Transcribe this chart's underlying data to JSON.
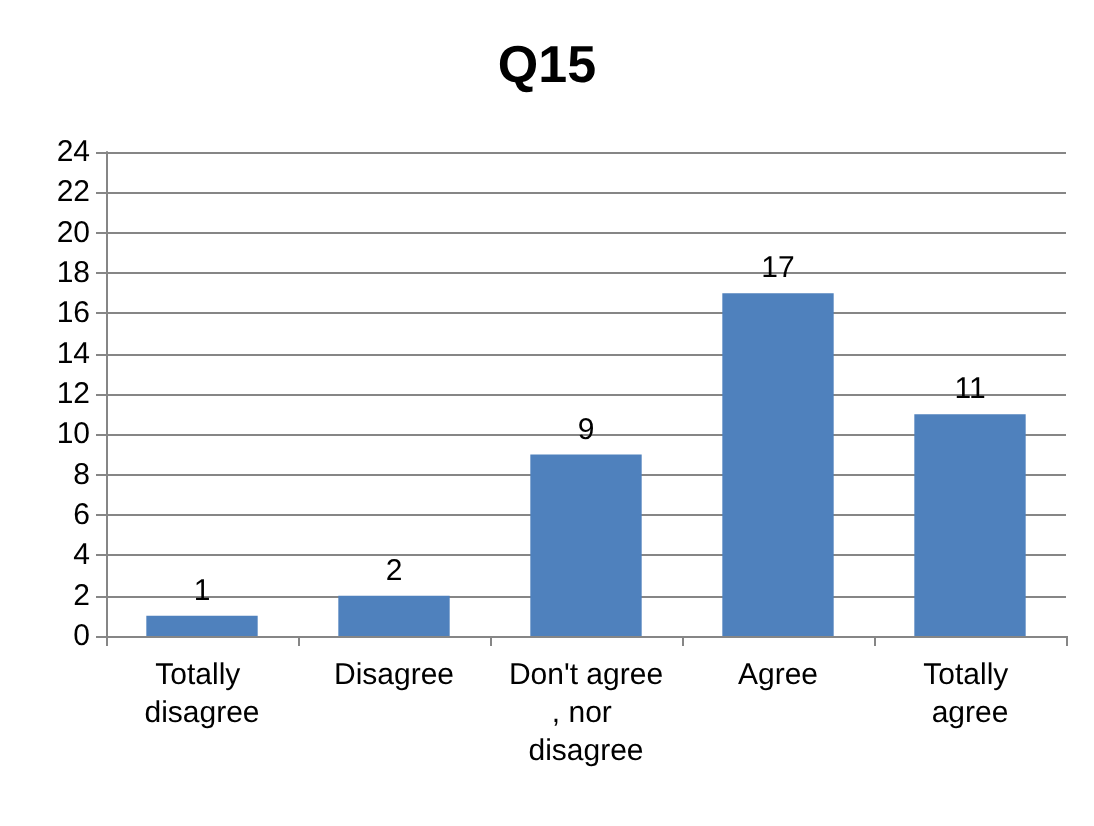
{
  "chart_data": {
    "type": "bar",
    "title": "Q15",
    "categories": [
      "Totally disagree",
      "Disagree",
      "Don't agree, nor disagree",
      "Agree",
      "Totally agree"
    ],
    "values": [
      1,
      2,
      9,
      17,
      11
    ],
    "color": "#4f81bd",
    "ylim": [
      0,
      24
    ],
    "yticks": [
      0,
      2,
      4,
      6,
      8,
      10,
      12,
      14,
      16,
      18,
      20,
      22,
      24
    ],
    "grid": "y",
    "data_labels": true
  }
}
